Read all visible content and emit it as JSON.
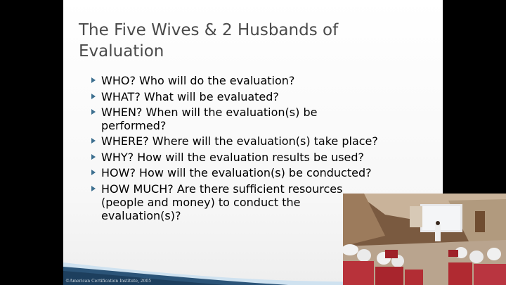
{
  "slide": {
    "title_line1": "The Five Wives & 2 Husbands of",
    "title_line2": "Evaluation",
    "bullets": [
      {
        "line1": "WHO?  Who will do the evaluation?"
      },
      {
        "line1": "WHAT?  What will be evaluated?"
      },
      {
        "line1": "WHEN? When will the evaluation(s) be",
        "line2": "performed?"
      },
      {
        "line1": "WHERE? Where will the evaluation(s) take place?"
      },
      {
        "line1": "WHY?  How will the evaluation results be used?"
      },
      {
        "line1": "HOW?  How will the evaluation(s) be conducted?"
      },
      {
        "line1": "HOW MUCH?  Are there sufficient resources",
        "line2": "(people and money) to conduct the",
        "line3": "evaluation(s)?"
      }
    ],
    "copyright": "©American Certification Institute, 2005"
  },
  "colors": {
    "background": "#000000",
    "bullet_arrow": "#3c6f8f",
    "title": "#4a4a4a",
    "wave_dark": "#1d3f5e",
    "wave_light": "#9fc3df"
  },
  "video": {
    "description_icon": "webcam-feed-icon"
  }
}
